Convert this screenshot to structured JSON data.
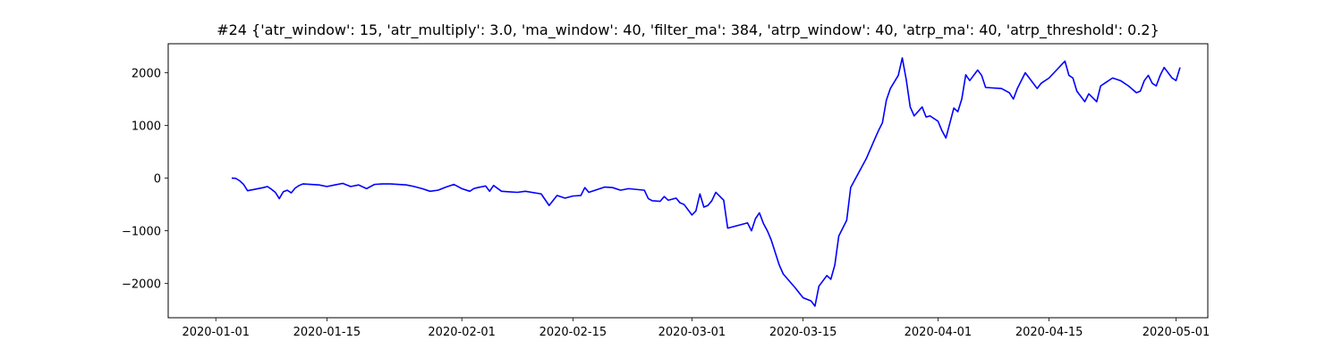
{
  "chart_data": {
    "type": "line",
    "title": "#24 {'atr_window': 15, 'atr_multiply': 3.0, 'ma_window': 40, 'filter_ma': 384, 'atrp_window': 40, 'atrp_ma': 40, 'atrp_threshold': 0.2}",
    "xlabel": "",
    "ylabel": "",
    "x_tick_labels": [
      "2020-01-01",
      "2020-01-15",
      "2020-02-01",
      "2020-02-15",
      "2020-03-01",
      "2020-03-15",
      "2020-04-01",
      "2020-04-15",
      "2020-05-01"
    ],
    "x_tick_dates": [
      "2020-01-01",
      "2020-01-15",
      "2020-02-01",
      "2020-02-15",
      "2020-03-01",
      "2020-03-15",
      "2020-04-01",
      "2020-04-15",
      "2020-05-01"
    ],
    "y_ticks": [
      -2000,
      -1000,
      0,
      1000,
      2000
    ],
    "y_tick_labels": [
      "−2000",
      "−1000",
      "0",
      "1000",
      "2000"
    ],
    "xlim": [
      "2019-12-26",
      "2020-05-05"
    ],
    "ylim": [
      -2650,
      2550
    ],
    "grid": false,
    "series": [
      {
        "name": "",
        "color": "#0000ff",
        "points": [
          [
            "2020-01-03",
            0
          ],
          [
            "2020-01-03",
            -5
          ],
          [
            "2020-01-04",
            -50
          ],
          [
            "2020-01-04",
            -120
          ],
          [
            "2020-01-05",
            -240
          ],
          [
            "2020-01-07",
            -180
          ],
          [
            "2020-01-07",
            -160
          ],
          [
            "2020-01-08",
            -210
          ],
          [
            "2020-01-08",
            -270
          ],
          [
            "2020-01-09",
            -390
          ],
          [
            "2020-01-09",
            -260
          ],
          [
            "2020-01-10",
            -230
          ],
          [
            "2020-01-10",
            -280
          ],
          [
            "2020-01-11",
            -190
          ],
          [
            "2020-01-11",
            -140
          ],
          [
            "2020-01-12",
            -110
          ],
          [
            "2020-01-14",
            -130
          ],
          [
            "2020-01-15",
            -160
          ],
          [
            "2020-01-16",
            -130
          ],
          [
            "2020-01-17",
            -100
          ],
          [
            "2020-01-18",
            -160
          ],
          [
            "2020-01-19",
            -130
          ],
          [
            "2020-01-20",
            -200
          ],
          [
            "2020-01-21",
            -120
          ],
          [
            "2020-01-22",
            -110
          ],
          [
            "2020-01-23",
            -110
          ],
          [
            "2020-01-25",
            -130
          ],
          [
            "2020-01-26",
            -160
          ],
          [
            "2020-01-27",
            -200
          ],
          [
            "2020-01-28",
            -250
          ],
          [
            "2020-01-29",
            -230
          ],
          [
            "2020-01-30",
            -170
          ],
          [
            "2020-01-31",
            -120
          ],
          [
            "2020-02-01",
            -200
          ],
          [
            "2020-02-02",
            -250
          ],
          [
            "2020-02-02",
            -200
          ],
          [
            "2020-02-03",
            -180
          ],
          [
            "2020-02-04",
            -150
          ],
          [
            "2020-02-04",
            -250
          ],
          [
            "2020-02-05",
            -140
          ],
          [
            "2020-02-06",
            -250
          ],
          [
            "2020-02-07",
            -260
          ],
          [
            "2020-02-08",
            -270
          ],
          [
            "2020-02-09",
            -250
          ],
          [
            "2020-02-11",
            -300
          ],
          [
            "2020-02-12",
            -520
          ],
          [
            "2020-02-13",
            -330
          ],
          [
            "2020-02-14",
            -380
          ],
          [
            "2020-02-15",
            -340
          ],
          [
            "2020-02-16",
            -330
          ],
          [
            "2020-02-16",
            -180
          ],
          [
            "2020-02-17",
            -270
          ],
          [
            "2020-02-19",
            -170
          ],
          [
            "2020-02-20",
            -180
          ],
          [
            "2020-02-21",
            -230
          ],
          [
            "2020-02-22",
            -200
          ],
          [
            "2020-02-24",
            -230
          ],
          [
            "2020-02-24",
            -390
          ],
          [
            "2020-02-25",
            -430
          ],
          [
            "2020-02-26",
            -440
          ],
          [
            "2020-02-26",
            -350
          ],
          [
            "2020-02-27",
            -420
          ],
          [
            "2020-02-28",
            -380
          ],
          [
            "2020-02-28",
            -470
          ],
          [
            "2020-02-29",
            -500
          ],
          [
            "2020-03-01",
            -700
          ],
          [
            "2020-03-01",
            -620
          ],
          [
            "2020-03-02",
            -300
          ],
          [
            "2020-03-02",
            -550
          ],
          [
            "2020-03-03",
            -520
          ],
          [
            "2020-03-03",
            -430
          ],
          [
            "2020-03-04",
            -270
          ],
          [
            "2020-03-05",
            -420
          ],
          [
            "2020-03-05",
            -950
          ],
          [
            "2020-03-07",
            -890
          ],
          [
            "2020-03-08",
            -850
          ],
          [
            "2020-03-08",
            -1000
          ],
          [
            "2020-03-09",
            -770
          ],
          [
            "2020-03-09",
            -660
          ],
          [
            "2020-03-10",
            -860
          ],
          [
            "2020-03-10",
            -1000
          ],
          [
            "2020-03-11",
            -1180
          ],
          [
            "2020-03-12",
            -1650
          ],
          [
            "2020-03-12",
            -1820
          ],
          [
            "2020-03-14",
            -2080
          ],
          [
            "2020-03-15",
            -2270
          ],
          [
            "2020-03-16",
            -2330
          ],
          [
            "2020-03-16",
            -2430
          ],
          [
            "2020-03-17",
            -2050
          ],
          [
            "2020-03-17",
            -1950
          ],
          [
            "2020-03-18",
            -1850
          ],
          [
            "2020-03-18",
            -1920
          ],
          [
            "2020-03-19",
            -1650
          ],
          [
            "2020-03-19",
            -1100
          ],
          [
            "2020-03-20",
            -950
          ],
          [
            "2020-03-20",
            -800
          ],
          [
            "2020-03-21",
            -180
          ],
          [
            "2020-03-23",
            380
          ],
          [
            "2020-03-24",
            730
          ],
          [
            "2020-03-24",
            900
          ],
          [
            "2020-03-25",
            1050
          ],
          [
            "2020-03-25",
            1480
          ],
          [
            "2020-03-26",
            1700
          ],
          [
            "2020-03-27",
            1950
          ],
          [
            "2020-03-27",
            2280
          ],
          [
            "2020-03-28",
            1870
          ],
          [
            "2020-03-28",
            1350
          ],
          [
            "2020-03-29",
            1180
          ],
          [
            "2020-03-30",
            1350
          ],
          [
            "2020-03-30",
            1160
          ],
          [
            "2020-03-31",
            1180
          ],
          [
            "2020-04-01",
            1080
          ],
          [
            "2020-04-01",
            900
          ],
          [
            "2020-04-02",
            760
          ],
          [
            "2020-04-03",
            1330
          ],
          [
            "2020-04-03",
            1260
          ],
          [
            "2020-04-04",
            1500
          ],
          [
            "2020-04-04",
            1960
          ],
          [
            "2020-04-05",
            1850
          ],
          [
            "2020-04-06",
            2050
          ],
          [
            "2020-04-06",
            1950
          ],
          [
            "2020-04-07",
            1720
          ],
          [
            "2020-04-09",
            1700
          ],
          [
            "2020-04-10",
            1620
          ],
          [
            "2020-04-10",
            1500
          ],
          [
            "2020-04-11",
            1700
          ],
          [
            "2020-04-12",
            2000
          ],
          [
            "2020-04-13",
            1800
          ],
          [
            "2020-04-13",
            1700
          ],
          [
            "2020-04-14",
            1800
          ],
          [
            "2020-04-15",
            1900
          ],
          [
            "2020-04-17",
            2220
          ],
          [
            "2020-04-17",
            1950
          ],
          [
            "2020-04-18",
            1900
          ],
          [
            "2020-04-18",
            1650
          ],
          [
            "2020-04-19",
            1550
          ],
          [
            "2020-04-19",
            1450
          ],
          [
            "2020-04-20",
            1600
          ],
          [
            "2020-04-21",
            1450
          ],
          [
            "2020-04-21",
            1750
          ],
          [
            "2020-04-22",
            1800
          ],
          [
            "2020-04-23",
            1900
          ],
          [
            "2020-04-24",
            1850
          ],
          [
            "2020-04-25",
            1750
          ],
          [
            "2020-04-26",
            1620
          ],
          [
            "2020-04-26",
            1650
          ],
          [
            "2020-04-27",
            1850
          ],
          [
            "2020-04-27",
            1950
          ],
          [
            "2020-04-28",
            1800
          ],
          [
            "2020-04-28",
            1750
          ],
          [
            "2020-04-29",
            1950
          ],
          [
            "2020-04-29",
            2100
          ],
          [
            "2020-04-30",
            2000
          ],
          [
            "2020-04-30",
            1900
          ],
          [
            "2020-05-01",
            1850
          ],
          [
            "2020-05-01",
            2100
          ]
        ]
      }
    ]
  }
}
